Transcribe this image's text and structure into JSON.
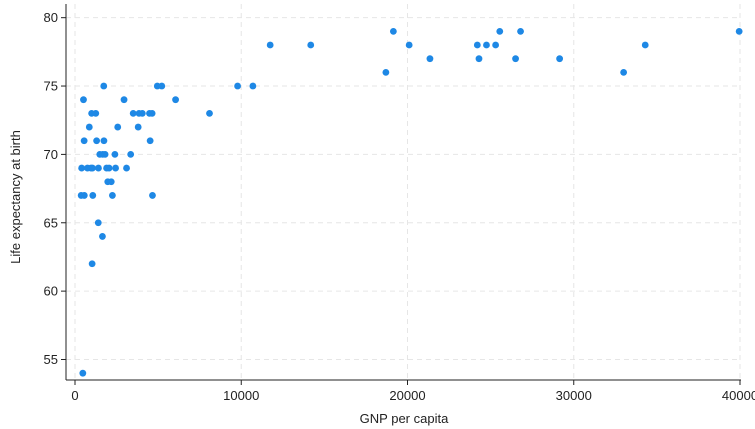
{
  "chart_data": {
    "type": "scatter",
    "title": "",
    "xlabel": "GNP per capita",
    "ylabel": "Life expectancy at birth",
    "xlim": [
      0,
      40000
    ],
    "ylim": [
      53.5,
      81
    ],
    "xticks": [
      0,
      10000,
      20000,
      30000,
      40000
    ],
    "xtick_labels": [
      "0",
      "10000",
      "20000",
      "30000",
      "40000"
    ],
    "yticks": [
      55,
      60,
      65,
      70,
      75,
      80
    ],
    "ytick_labels": [
      "55",
      "60",
      "65",
      "70",
      "75",
      "80"
    ],
    "grid": true,
    "marker_color": "#1e88e5",
    "series": [
      {
        "points": [
          [
            370,
            67
          ],
          [
            400,
            69
          ],
          [
            470,
            54
          ],
          [
            510,
            74
          ],
          [
            550,
            71
          ],
          [
            560,
            67
          ],
          [
            750,
            69
          ],
          [
            860,
            72
          ],
          [
            960,
            69
          ],
          [
            1000,
            73
          ],
          [
            1030,
            62
          ],
          [
            1050,
            69
          ],
          [
            1070,
            67
          ],
          [
            1250,
            73
          ],
          [
            1300,
            71
          ],
          [
            1400,
            65
          ],
          [
            1410,
            69
          ],
          [
            1490,
            70
          ],
          [
            1650,
            64
          ],
          [
            1670,
            70
          ],
          [
            1730,
            75
          ],
          [
            1740,
            71
          ],
          [
            1810,
            70
          ],
          [
            1900,
            69
          ],
          [
            1970,
            68
          ],
          [
            2050,
            69
          ],
          [
            2180,
            68
          ],
          [
            2250,
            67
          ],
          [
            2400,
            70
          ],
          [
            2440,
            69
          ],
          [
            2570,
            72
          ],
          [
            2950,
            74
          ],
          [
            3100,
            69
          ],
          [
            3350,
            70
          ],
          [
            3500,
            73
          ],
          [
            3800,
            72
          ],
          [
            3850,
            73
          ],
          [
            4050,
            73
          ],
          [
            4480,
            73
          ],
          [
            4520,
            71
          ],
          [
            4640,
            73
          ],
          [
            4660,
            67
          ],
          [
            4950,
            75
          ],
          [
            5220,
            75
          ],
          [
            6050,
            74
          ],
          [
            8090,
            73
          ],
          [
            9780,
            75
          ],
          [
            10700,
            75
          ],
          [
            11740,
            78
          ],
          [
            14180,
            78
          ],
          [
            18700,
            76
          ],
          [
            19150,
            79
          ],
          [
            20100,
            78
          ],
          [
            21350,
            77
          ],
          [
            24200,
            78
          ],
          [
            24300,
            77
          ],
          [
            24750,
            78
          ],
          [
            25300,
            78
          ],
          [
            25550,
            79
          ],
          [
            26500,
            77
          ],
          [
            26800,
            79
          ],
          [
            29150,
            77
          ],
          [
            33000,
            76
          ],
          [
            34300,
            78
          ],
          [
            39950,
            79
          ]
        ]
      }
    ]
  }
}
